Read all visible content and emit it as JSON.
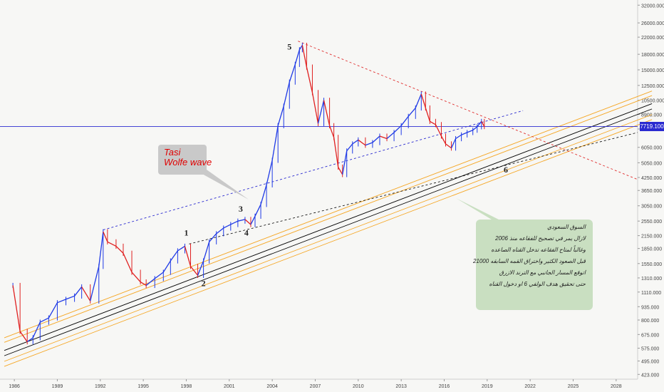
{
  "chart_data": {
    "type": "line",
    "title": "",
    "instrument_label": [
      "Tasi",
      "Wolfe wave"
    ],
    "x_axis": {
      "tick_labels": [
        "1986",
        "1989",
        "1992",
        "1995",
        "1998",
        "2001",
        "2004",
        "2007",
        "2010",
        "2013",
        "2016",
        "2019",
        "2022",
        "2025",
        "2028"
      ],
      "range": [
        1985.0,
        2029.5
      ]
    },
    "y_axis": {
      "scale": "log",
      "position": "right",
      "tick_labels": [
        "32000.000",
        "26000.000",
        "22000.000",
        "18000.000",
        "15000.000",
        "12500.000",
        "10500.000",
        "8900.000",
        "7500.000",
        "6050.000",
        "5050.000",
        "4250.000",
        "3650.000",
        "3050.000",
        "2550.000",
        "2150.000",
        "1850.000",
        "1550.000",
        "1310.000",
        "1110.000",
        "935.000",
        "800.000",
        "675.000",
        "575.000",
        "495.000",
        "423.000"
      ],
      "tick_values": [
        32000,
        26000,
        22000,
        18000,
        15000,
        12500,
        10500,
        8900,
        7500,
        6050,
        5050,
        4250,
        3650,
        3050,
        2550,
        2150,
        1850,
        1550,
        1310,
        1110,
        935,
        800,
        675,
        575,
        495,
        423
      ],
      "range": [
        400,
        34000
      ]
    },
    "current_price": 7719.1,
    "current_price_label": "7719.100",
    "series": [
      {
        "values_x": [
          1985.9,
          1986.4,
          1986.9,
          1987.3,
          1987.8,
          1988.4,
          1989.0,
          1989.6,
          1990.2,
          1990.7,
          1991.3,
          1991.9,
          1992.2,
          1992.5,
          1993.1,
          1993.6,
          1994.2,
          1994.8,
          1995.2,
          1995.8,
          1996.4,
          1996.9,
          1997.4,
          1997.9,
          1998.3,
          1998.8,
          1999.2,
          1999.6,
          2000.1,
          2000.6,
          2001.1,
          2001.6,
          2002.1,
          2002.5,
          2002.8,
          2003.2,
          2003.6,
          2004.0,
          2004.4,
          2004.8,
          2005.2,
          2005.6,
          2005.9,
          2006.1,
          2006.4,
          2006.8,
          2007.2,
          2007.6,
          2008.0,
          2008.3,
          2008.6,
          2008.9,
          2009.2,
          2009.6,
          2010.0,
          2010.5,
          2011.0,
          2011.5,
          2012.0,
          2012.5,
          2013.0,
          2013.5,
          2014.0,
          2014.4,
          2014.7,
          2015.0,
          2015.4,
          2015.8,
          2016.1,
          2016.5,
          2016.8,
          2017.2,
          2017.6,
          2018.0,
          2018.3,
          2018.6,
          2018.8
        ],
        "values_y": [
          1200,
          700,
          620,
          650,
          780,
          820,
          980,
          1020,
          1060,
          1180,
          1000,
          1500,
          2250,
          2000,
          1900,
          1750,
          1400,
          1250,
          1200,
          1300,
          1400,
          1600,
          1800,
          1900,
          1500,
          1350,
          1600,
          2000,
          2200,
          2350,
          2450,
          2550,
          2600,
          2450,
          2700,
          3100,
          3900,
          5200,
          7800,
          9800,
          13000,
          16000,
          19000,
          20000,
          15500,
          11500,
          8000,
          10500,
          7800,
          6800,
          4800,
          4400,
          5800,
          6300,
          6600,
          6200,
          6400,
          6900,
          6700,
          7200,
          7800,
          8700,
          9600,
          11300,
          9600,
          8200,
          7900,
          6900,
          6300,
          6000,
          6700,
          7000,
          7200,
          7400,
          7700,
          8200,
          7719
        ]
      }
    ],
    "annotations": [
      {
        "text": "1",
        "x": 1998.0,
        "y": 2150
      },
      {
        "text": "2",
        "x": 1999.2,
        "y": 1190
      },
      {
        "text": "3",
        "x": 2001.8,
        "y": 2850
      },
      {
        "text": "4",
        "x": 2002.2,
        "y": 2150
      },
      {
        "text": "5",
        "x": 2005.2,
        "y": 19000
      },
      {
        "text": "6",
        "x": 2020.3,
        "y": 4500
      }
    ],
    "note_lines": [
      "السوق السعودي",
      "لازال يمر في تصحيح للفقاعه منذ 2006",
      "وغالباً لمتاح الفقاعه تدخل القناه الصاعده",
      "قبل الصعود الكثير واختراق القمه السابقه 21000",
      "اتوقع المسار الجانبي مع الترند الازرق",
      "حتى تحقيق هدف الولفي 6 او دخول القناه"
    ],
    "colors": {
      "up_candle": "#1f3ae6",
      "down_candle": "#e02020",
      "channel_orange": "#f5a623",
      "trendline_black": "#000000",
      "wolfe_red_dashed": "#e03030",
      "wolfe_blue_dashed": "#2a2ad0",
      "price_line": "#2a2ad0",
      "background": "#f7f7f5"
    },
    "grid": false
  }
}
